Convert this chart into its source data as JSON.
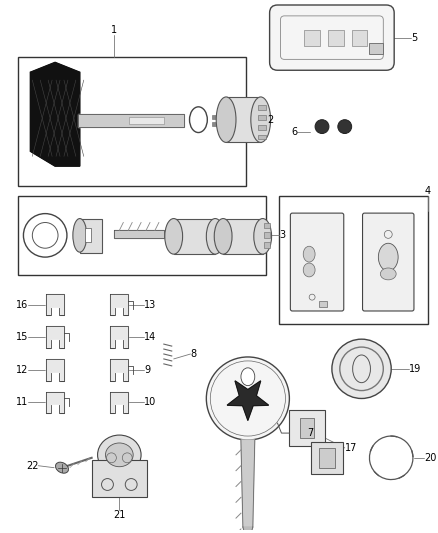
{
  "background_color": "#ffffff",
  "fig_width": 4.38,
  "fig_height": 5.33,
  "dpi": 100,
  "line_color": "#555555",
  "label_fs": 7.0,
  "lw": 0.7
}
